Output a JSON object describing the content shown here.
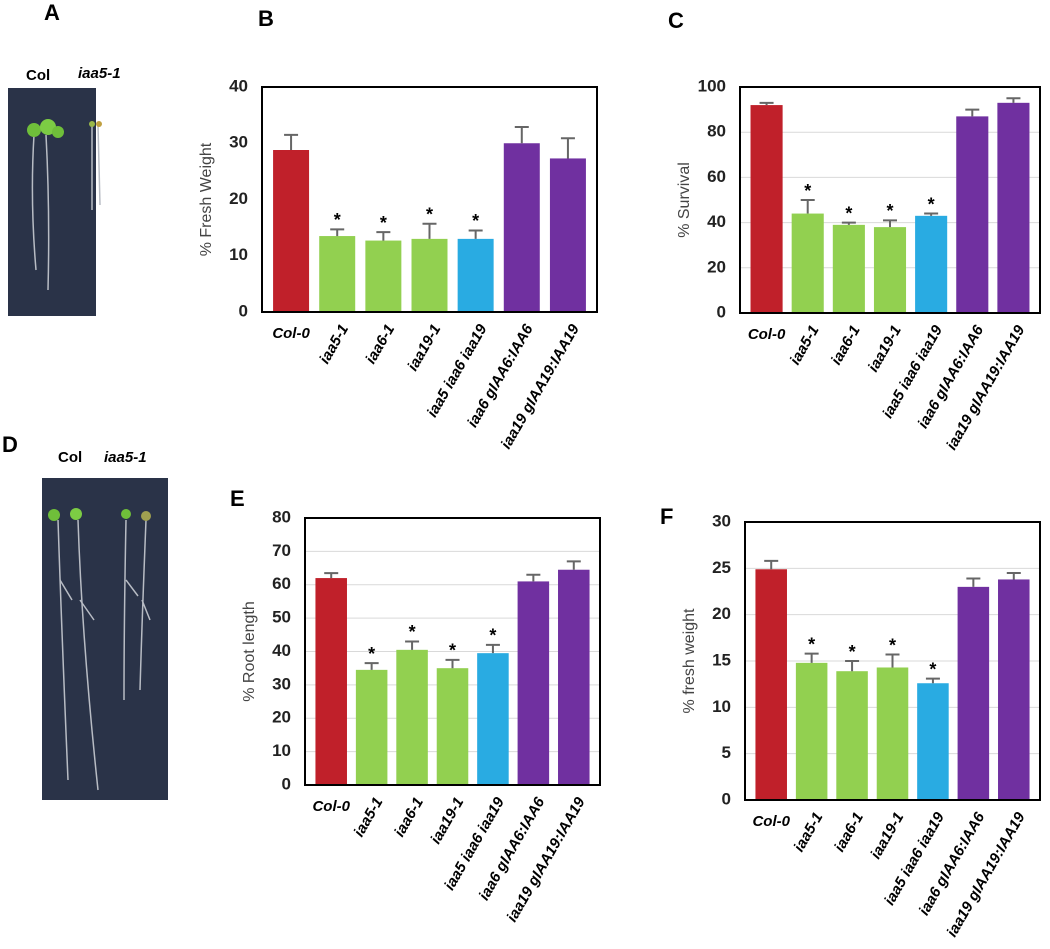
{
  "panels": [
    "A",
    "B",
    "C",
    "D",
    "E",
    "F"
  ],
  "photos": [
    {
      "labels": [
        "Col",
        "iaa5-1"
      ]
    },
    {
      "labels": [
        "Col",
        "iaa5-1"
      ]
    }
  ],
  "chart_data": [
    {
      "type": "bar",
      "ylabel": "% Fresh Weight",
      "categories": [
        "Col-0",
        "iaa5-1",
        "iaa6-1",
        "iaa19-1",
        "iaa5 iaa6 iaa19",
        "iaa6 gIAA6:IAA6",
        "iaa19 gIAA19:IAA19"
      ],
      "values": [
        28.8,
        13.5,
        12.7,
        13,
        13,
        30,
        27.3
      ],
      "errors": [
        2.7,
        1.2,
        1.5,
        2.7,
        1.5,
        2.9,
        3.6
      ],
      "significance": [
        null,
        "*",
        "*",
        "*",
        "*",
        null,
        null
      ],
      "colors": [
        "#c0202a",
        "#92d050",
        "#92d050",
        "#92d050",
        "#29abe2",
        "#7030a0",
        "#7030a0"
      ],
      "ylim": [
        0,
        40
      ],
      "yticks": [
        0,
        10,
        20,
        30,
        40
      ],
      "grid": false
    },
    {
      "type": "bar",
      "ylabel": "% Survival",
      "categories": [
        "Col-0",
        "iaa5-1",
        "iaa6-1",
        "iaa19-1",
        "iaa5 iaa6 iaa19",
        "iaa6 gIAA6:IAA6",
        "iaa19 gIAA19:IAA19"
      ],
      "values": [
        92,
        44,
        39,
        38,
        43,
        87,
        93
      ],
      "errors": [
        1,
        6,
        1,
        3,
        1,
        3,
        2
      ],
      "significance": [
        null,
        "*",
        "*",
        "*",
        "*",
        null,
        null
      ],
      "colors": [
        "#c0202a",
        "#92d050",
        "#92d050",
        "#92d050",
        "#29abe2",
        "#7030a0",
        "#7030a0"
      ],
      "ylim": [
        0,
        100
      ],
      "yticks": [
        0,
        20,
        40,
        60,
        80,
        100
      ],
      "grid": true
    },
    {
      "type": "bar",
      "ylabel": "% Root length",
      "categories": [
        "Col-0",
        "iaa5-1",
        "iaa6-1",
        "iaa19-1",
        "iaa5 iaa6 iaa19",
        "iaa6 gIAA6:IAA6",
        "iaa19 gIAA19:IAA19"
      ],
      "values": [
        62,
        34.5,
        40.5,
        35,
        39.5,
        61,
        64.5
      ],
      "errors": [
        1.5,
        2,
        2.5,
        2.5,
        2.5,
        2,
        2.5
      ],
      "significance": [
        null,
        "*",
        "*",
        "*",
        "*",
        null,
        null
      ],
      "colors": [
        "#c0202a",
        "#92d050",
        "#92d050",
        "#92d050",
        "#29abe2",
        "#7030a0",
        "#7030a0"
      ],
      "ylim": [
        0,
        80
      ],
      "yticks": [
        0,
        10,
        20,
        30,
        40,
        50,
        60,
        70,
        80
      ],
      "grid": true
    },
    {
      "type": "bar",
      "ylabel": "% fresh weight",
      "categories": [
        "Col-0",
        "iaa5-1",
        "iaa6-1",
        "iaa19-1",
        "iaa5 iaa6 iaa19",
        "iaa6 gIAA6:IAA6",
        "iaa19 gIAA19:IAA19"
      ],
      "values": [
        24.9,
        14.8,
        13.9,
        14.3,
        12.6,
        23,
        23.8
      ],
      "errors": [
        0.9,
        1,
        1.1,
        1.4,
        0.5,
        0.9,
        0.7
      ],
      "significance": [
        null,
        "*",
        "*",
        "*",
        "*",
        null,
        null
      ],
      "colors": [
        "#c0202a",
        "#92d050",
        "#92d050",
        "#92d050",
        "#29abe2",
        "#7030a0",
        "#7030a0"
      ],
      "ylim": [
        0,
        30
      ],
      "yticks": [
        0,
        5,
        10,
        15,
        20,
        25,
        30
      ],
      "grid": true
    }
  ]
}
